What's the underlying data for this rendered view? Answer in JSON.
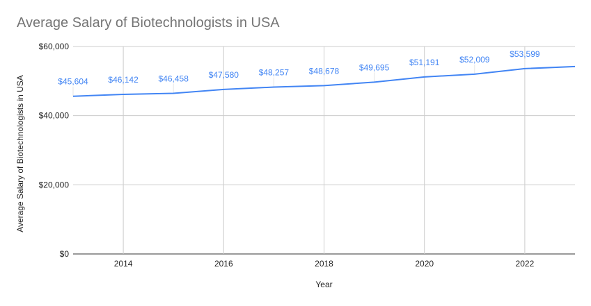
{
  "chart_data": {
    "type": "line",
    "title": "Average Salary of Biotechnologists in USA",
    "xlabel": "Year",
    "ylabel": "Average Salary of Biotechnologists in USA",
    "x": [
      2013,
      2014,
      2015,
      2016,
      2017,
      2018,
      2019,
      2020,
      2021,
      2022,
      2023
    ],
    "series": [
      {
        "values": [
          45604,
          46142,
          46458,
          47580,
          48257,
          48678,
          49695,
          51191,
          52009,
          53599,
          54200
        ]
      }
    ],
    "data_labels": [
      "$45,604",
      "$46,142",
      "$46,458",
      "$47,580",
      "$48,257",
      "$48,678",
      "$49,695",
      "$51,191",
      "$52,009",
      "$53,599",
      null
    ],
    "xlim": [
      2013,
      2023
    ],
    "ylim": [
      0,
      60000
    ],
    "x_ticks": [
      2014,
      2016,
      2018,
      2020,
      2022
    ],
    "x_tick_labels": [
      "2014",
      "2016",
      "2018",
      "2020",
      "2022"
    ],
    "y_ticks": [
      0,
      20000,
      40000,
      60000
    ],
    "y_tick_labels": [
      "$0",
      "$20,000",
      "$40,000",
      "$60,000"
    ],
    "grid": true,
    "legend": "none",
    "line_color": "#4285f4"
  }
}
